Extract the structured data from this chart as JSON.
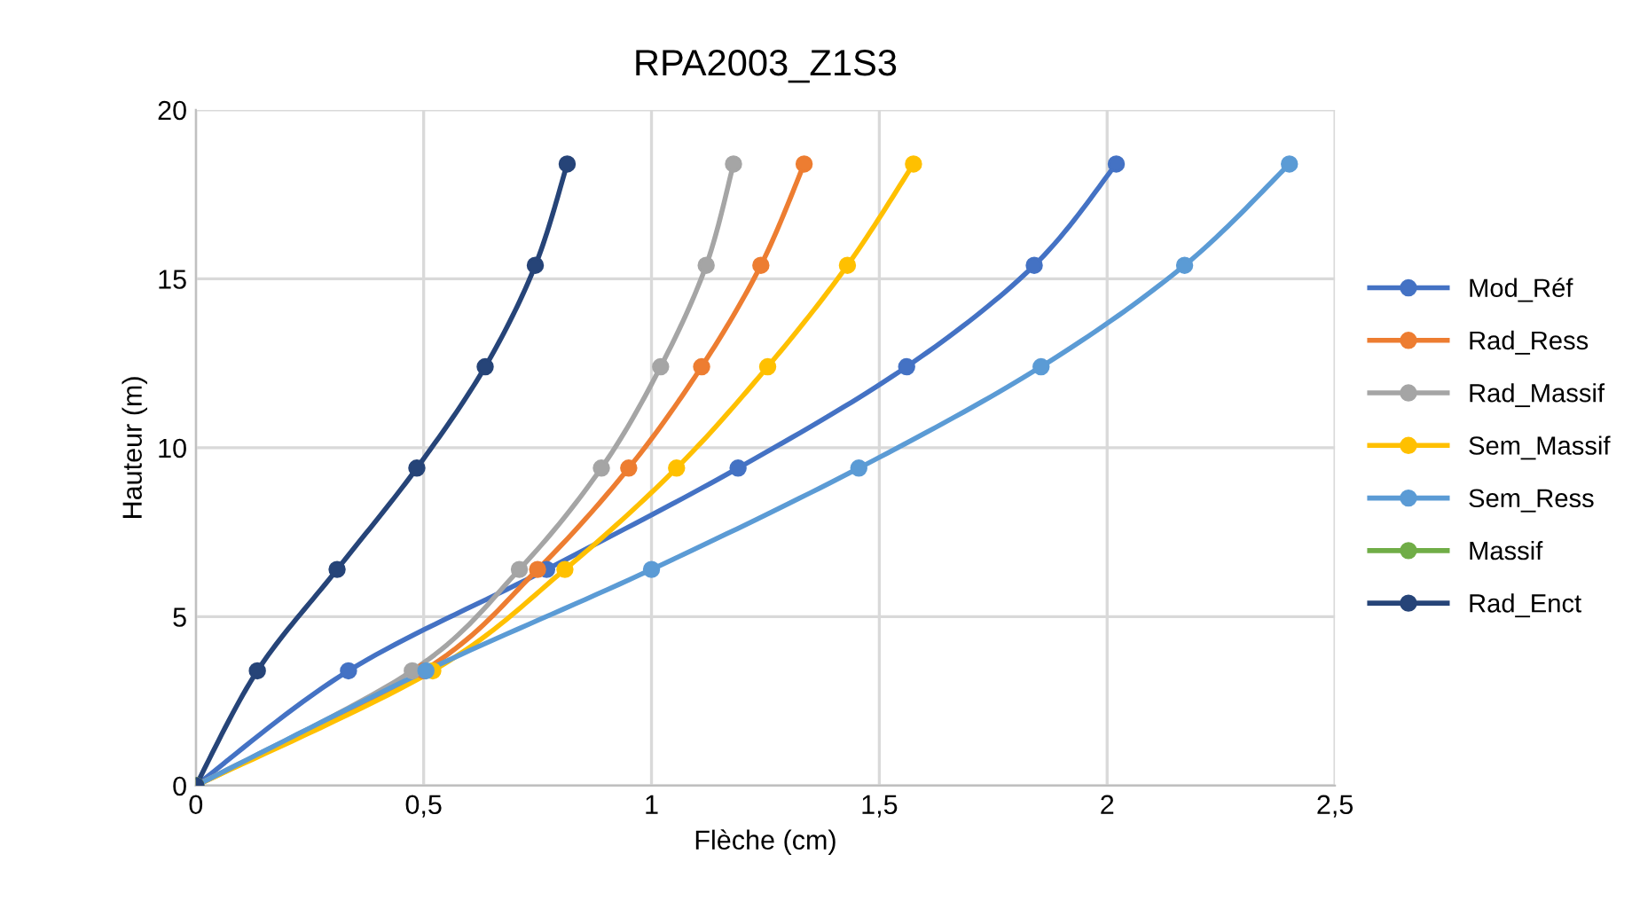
{
  "chart_data": {
    "type": "line",
    "title": "RPA2003_Z1S3",
    "xlabel": "Flèche (cm)",
    "ylabel": "Hauteur (m)",
    "xlim": [
      0,
      2.5
    ],
    "xticks": [
      0,
      {
        "value": 0.5,
        "label": "0,5"
      },
      1,
      {
        "value": 1.5,
        "label": "1,5"
      },
      2,
      {
        "value": 2.5,
        "label": "2,5"
      }
    ],
    "ylim": [
      0,
      20
    ],
    "yticks": [
      0,
      5,
      10,
      15,
      20
    ],
    "grid": true,
    "legend": "right",
    "marker": "circle",
    "line_style": "solid",
    "series": [
      {
        "name": "Mod_Réf",
        "color": "#4472c4",
        "x": [
          0,
          0.335,
          0.77,
          1.19,
          1.56,
          1.84,
          2.02
        ],
        "values": [
          0,
          3.4,
          6.4,
          9.4,
          12.4,
          15.4,
          18.4
        ]
      },
      {
        "name": "Rad_Ress",
        "color": "#ed7d31",
        "x": [
          0,
          0.5,
          0.75,
          0.95,
          1.11,
          1.24,
          1.335
        ],
        "values": [
          0,
          3.4,
          6.4,
          9.4,
          12.4,
          15.4,
          18.4
        ]
      },
      {
        "name": "Rad_Massif",
        "color": "#a5a5a5",
        "x": [
          0,
          0.475,
          0.71,
          0.89,
          1.02,
          1.12,
          1.18
        ],
        "values": [
          0,
          3.4,
          6.4,
          9.4,
          12.4,
          15.4,
          18.4
        ]
      },
      {
        "name": "Sem_Massif",
        "color": "#ffc000",
        "x": [
          0,
          0.52,
          0.81,
          1.055,
          1.255,
          1.43,
          1.575
        ],
        "values": [
          0,
          3.4,
          6.4,
          9.4,
          12.4,
          15.4,
          18.4
        ]
      },
      {
        "name": "Sem_Ress",
        "color": "#5b9bd5",
        "x": [
          0,
          0.505,
          1.0,
          1.455,
          1.855,
          2.17,
          2.4
        ],
        "values": [
          0,
          3.4,
          6.4,
          9.4,
          12.4,
          15.4,
          18.4
        ]
      },
      {
        "name": "Massif",
        "color": "#70ad47",
        "x": [
          0
        ],
        "values": [
          0
        ]
      },
      {
        "name": "Rad_Enct",
        "color": "#264478",
        "x": [
          0,
          0.135,
          0.31,
          0.485,
          0.635,
          0.745,
          0.815
        ],
        "values": [
          0,
          3.4,
          6.4,
          9.4,
          12.4,
          15.4,
          18.4
        ]
      }
    ]
  }
}
